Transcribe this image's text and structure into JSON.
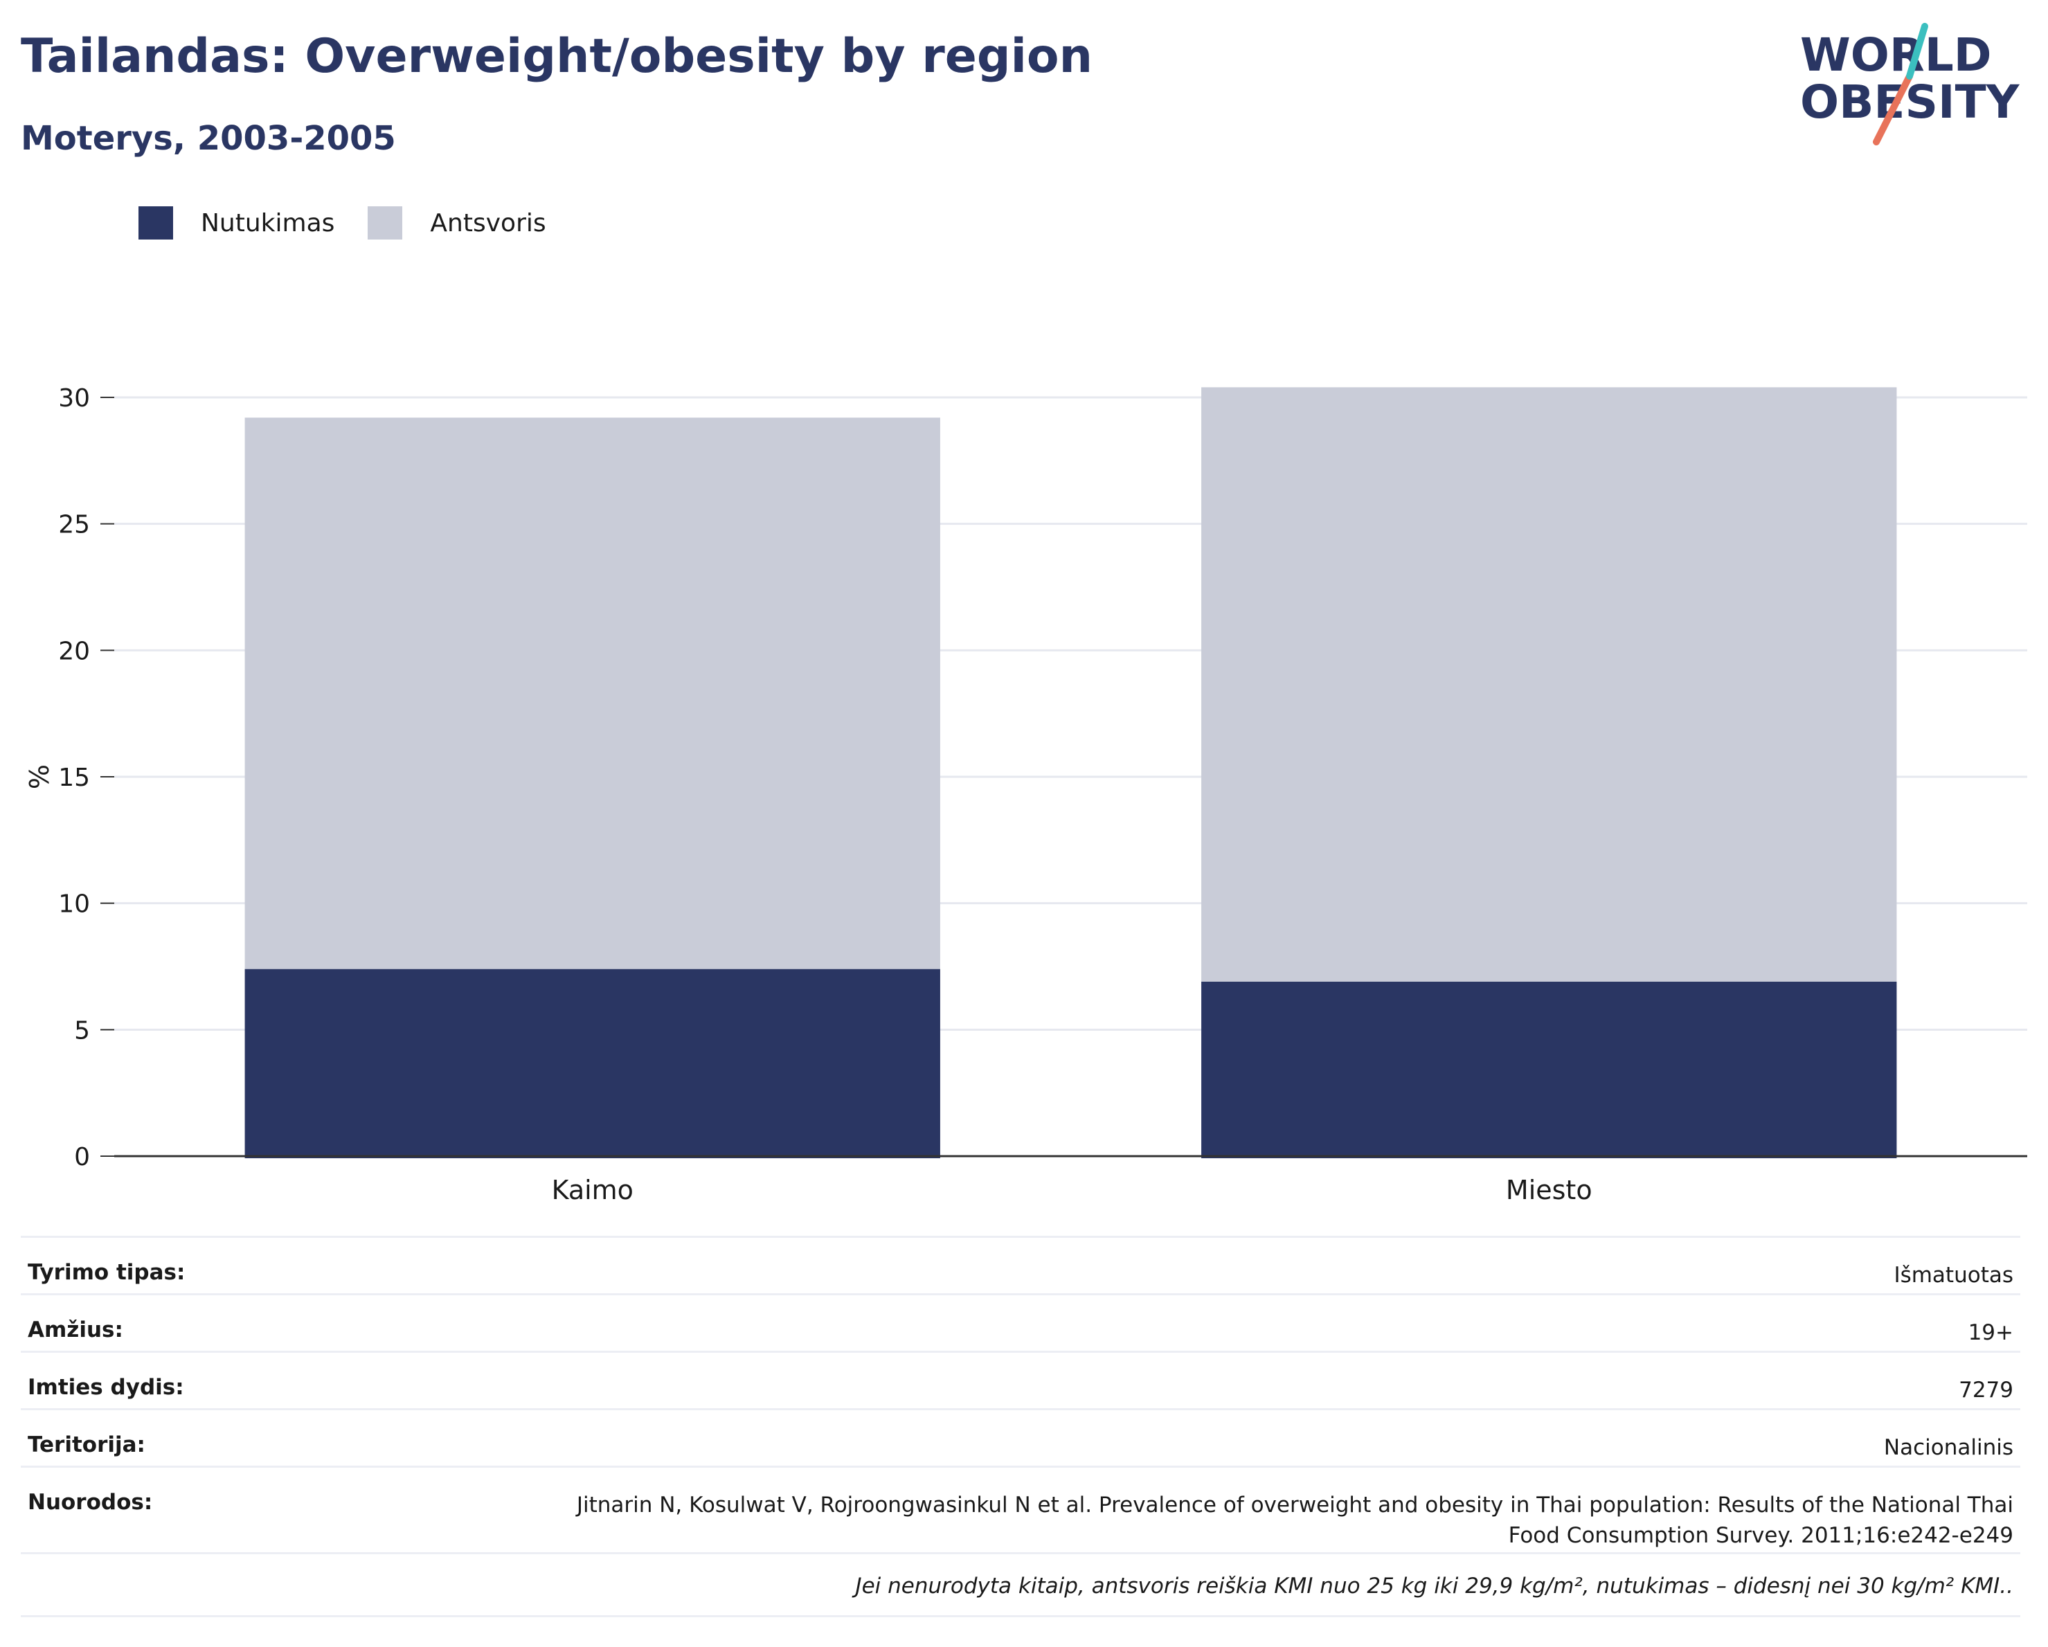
{
  "header": {
    "title": "Tailandas: Overweight/obesity by region",
    "subtitle": "Moterys, 2003-2005",
    "logo_line1": "WORLD",
    "logo_line2": "OBESITY"
  },
  "colors": {
    "obesity": "#2a3663",
    "overweight": "#c9ccd8",
    "title": "#2a3663",
    "logo_teal": "#3bbfbf",
    "logo_coral": "#e8735a"
  },
  "chart_data": {
    "type": "bar",
    "stacked": true,
    "categories": [
      "Kaimo",
      "Miesto"
    ],
    "series": [
      {
        "name": "Nutukimas",
        "values": [
          7.4,
          6.9
        ]
      },
      {
        "name": "Antsvoris",
        "values": [
          21.8,
          23.5
        ]
      }
    ],
    "ylabel": "%",
    "ylim": [
      0,
      30
    ],
    "yticks": [
      0,
      5,
      10,
      15,
      20,
      25,
      30
    ],
    "grid": true,
    "legend_position": "top-left"
  },
  "meta": [
    {
      "key": "Tyrimo tipas:",
      "value": "Išmatuotas"
    },
    {
      "key": "Amžius:",
      "value": "19+"
    },
    {
      "key": "Imties dydis:",
      "value": "7279"
    },
    {
      "key": "Teritorija:",
      "value": "Nacionalinis"
    },
    {
      "key": "Nuorodos:",
      "value": "Jitnarin N, Kosulwat V, Rojroongwasinkul N et al. Prevalence of overweight and obesity in Thai population: Results of the National Thai Food Consumption Survey. 2011;16:e242-e249"
    }
  ],
  "footnote": "Jei nenurodyta kitaip, antsvoris reiškia KMI nuo 25 kg iki 29,9 kg/m², nutukimas – didesnį nei 30 kg/m² KMI.."
}
